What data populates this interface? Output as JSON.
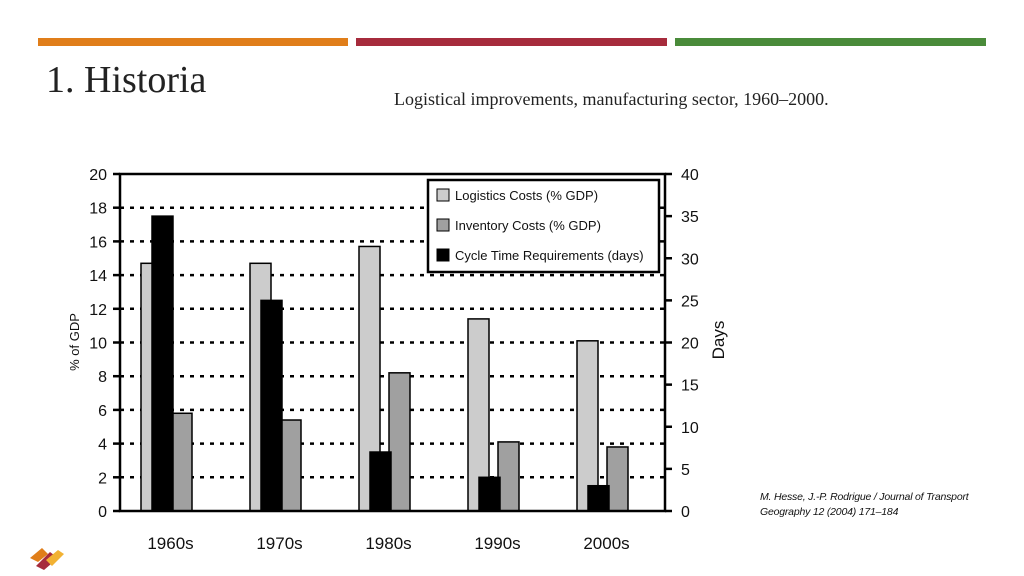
{
  "slide": {
    "title": "1.  Historia",
    "subtitle": "Logistical improvements, manufacturing sector, 1960–2000.",
    "citation": "M. Hesse, J.-P. Rodrigue / Journal of Transport Geography 12 (2004) 171–184",
    "accent_colors": [
      "#E07E1A",
      "#A62B3C",
      "#4A8B3A"
    ]
  },
  "chart_data": {
    "type": "bar",
    "categories": [
      "1960s",
      "1970s",
      "1980s",
      "1990s",
      "2000s"
    ],
    "series": [
      {
        "name": "Logistics Costs (% GDP)",
        "axis": "left",
        "color": "#cccccc",
        "values": [
          14.7,
          14.7,
          15.7,
          11.4,
          10.1
        ]
      },
      {
        "name": "Inventory Costs (% GDP)",
        "axis": "left",
        "color": "#a0a0a0",
        "values": [
          5.8,
          5.4,
          8.2,
          4.1,
          3.8
        ]
      },
      {
        "name": "Cycle Time Requirements (days)",
        "axis": "right",
        "color": "#000000",
        "values": [
          35,
          25,
          7,
          4,
          3
        ]
      }
    ],
    "ylabel": "% of GDP",
    "ylabel_right": "Days",
    "ylim": [
      0,
      20
    ],
    "ylim_right": [
      0,
      40
    ],
    "yticks": [
      "0",
      "2",
      "4",
      "6",
      "8",
      "10",
      "12",
      "14",
      "16",
      "18",
      "20"
    ],
    "yticks_right": [
      "0",
      "5",
      "10",
      "15",
      "20",
      "25",
      "30",
      "35",
      "40"
    ],
    "grid": "dashed horizontal",
    "legend_position": "top-right"
  }
}
